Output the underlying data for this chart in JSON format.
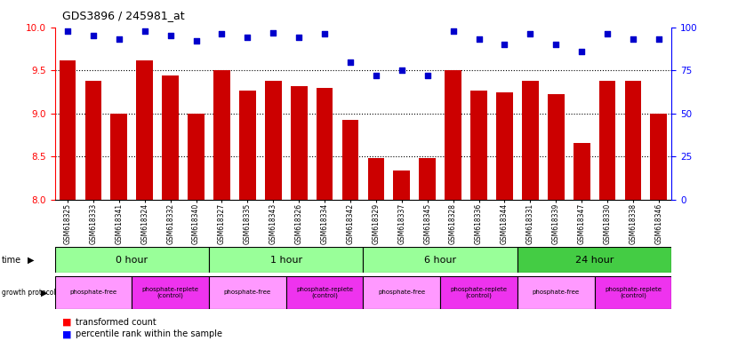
{
  "title": "GDS3896 / 245981_at",
  "samples": [
    "GSM618325",
    "GSM618333",
    "GSM618341",
    "GSM618324",
    "GSM618332",
    "GSM618340",
    "GSM618327",
    "GSM618335",
    "GSM618343",
    "GSM618326",
    "GSM618334",
    "GSM618342",
    "GSM618329",
    "GSM618337",
    "GSM618345",
    "GSM618328",
    "GSM618336",
    "GSM618344",
    "GSM618331",
    "GSM618339",
    "GSM618347",
    "GSM618330",
    "GSM618338",
    "GSM618346"
  ],
  "bar_values": [
    9.62,
    9.38,
    9.0,
    9.62,
    9.44,
    9.0,
    9.5,
    9.26,
    9.38,
    9.32,
    9.3,
    8.92,
    8.48,
    8.34,
    8.48,
    9.5,
    9.26,
    9.24,
    9.38,
    9.22,
    8.66,
    9.38,
    9.38,
    9.0
  ],
  "percentile_values": [
    98,
    95,
    93,
    98,
    95,
    92,
    96,
    94,
    97,
    94,
    96,
    80,
    72,
    75,
    72,
    98,
    93,
    90,
    96,
    90,
    86,
    96,
    93,
    93
  ],
  "ylim_left": [
    8.0,
    10.0
  ],
  "ylim_right": [
    0,
    100
  ],
  "yticks_left": [
    8.0,
    8.5,
    9.0,
    9.5,
    10.0
  ],
  "yticks_right": [
    0,
    25,
    50,
    75,
    100
  ],
  "bar_color": "#cc0000",
  "dot_color": "#0000cc",
  "time_labels": [
    "0 hour",
    "1 hour",
    "6 hour",
    "24 hour"
  ],
  "time_boundaries": [
    0,
    6,
    12,
    18,
    24
  ],
  "time_color_light": "#99ff99",
  "time_color_dark": "#44cc44",
  "proto_labels": [
    "phosphate-free",
    "phosphate-replete\n(control)",
    "phosphate-free",
    "phosphate-replete\n(control)",
    "phosphate-free",
    "phosphate-replete\n(control)",
    "phosphate-free",
    "phosphate-replete\n(control)"
  ],
  "proto_boundaries": [
    0,
    3,
    6,
    9,
    12,
    15,
    18,
    21,
    24
  ],
  "proto_color_free": "#ff99ff",
  "proto_color_replete": "#ee33ee",
  "grid_dotted_values": [
    8.5,
    9.0,
    9.5
  ],
  "background_color": "#ffffff"
}
